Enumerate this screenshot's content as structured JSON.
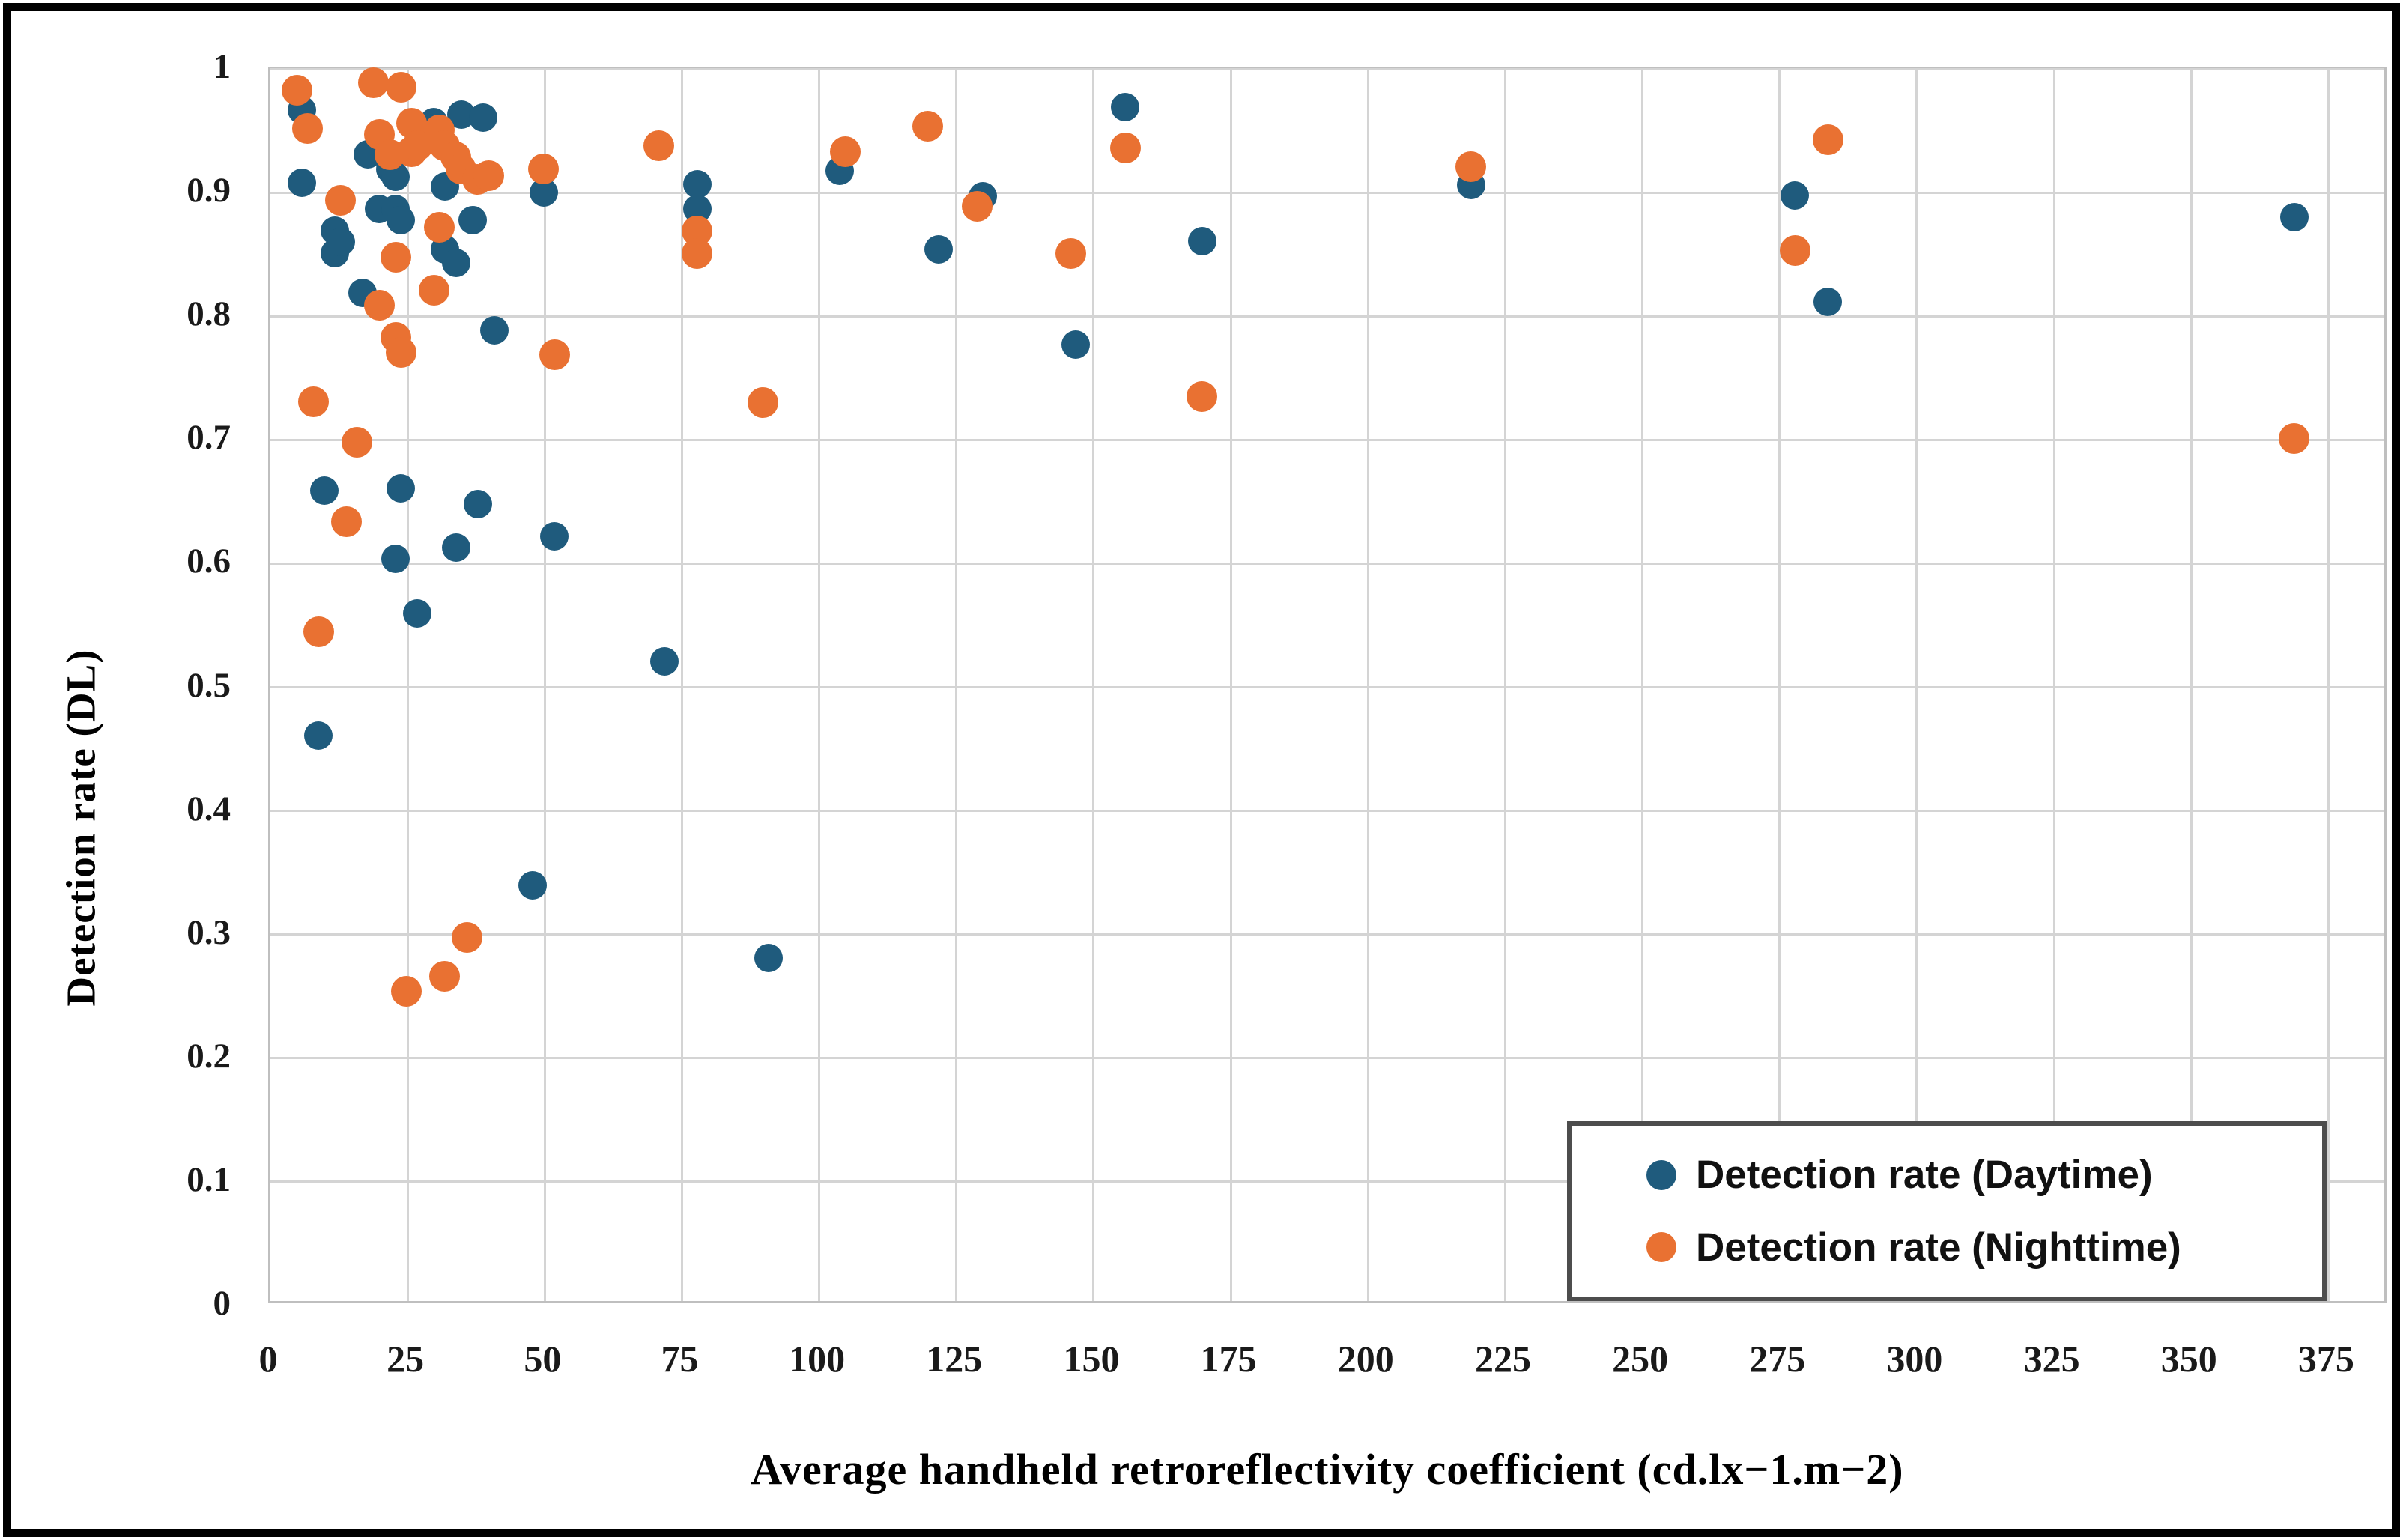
{
  "figure": {
    "background": "#ffffff",
    "border_color": "#000000"
  },
  "chart_data": {
    "type": "scatter",
    "title": "",
    "xlabel": "Average handheld retroreflectivity coefficient (cd.lx−1.m−2)",
    "ylabel": "Detection rate (DL)",
    "xlim": [
      0,
      386
    ],
    "ylim": [
      0,
      1
    ],
    "x_ticks": [
      0,
      25,
      50,
      75,
      100,
      125,
      150,
      175,
      200,
      225,
      250,
      275,
      300,
      325,
      350,
      375
    ],
    "y_ticks": [
      0,
      0.1,
      0.2,
      0.3,
      0.4,
      0.5,
      0.6,
      0.7,
      0.8,
      0.9,
      1
    ],
    "grid": true,
    "gridline_color": "#d4d4d4",
    "legend_position": "bottom-right",
    "series": [
      {
        "name": "Detection rate (Daytime)",
        "color": "#1F5B7D",
        "marker_size": 38,
        "points": [
          [
            6,
            0.966
          ],
          [
            6,
            0.907
          ],
          [
            9,
            0.46
          ],
          [
            10,
            0.658
          ],
          [
            12,
            0.868
          ],
          [
            12,
            0.85
          ],
          [
            13,
            0.859
          ],
          [
            17,
            0.818
          ],
          [
            18,
            0.93
          ],
          [
            20,
            0.886
          ],
          [
            22,
            0.918
          ],
          [
            23,
            0.912
          ],
          [
            23,
            0.886
          ],
          [
            24,
            0.877
          ],
          [
            23,
            0.603
          ],
          [
            24,
            0.66
          ],
          [
            27,
            0.559
          ],
          [
            30,
            0.956
          ],
          [
            32,
            0.904
          ],
          [
            32,
            0.853
          ],
          [
            34,
            0.842
          ],
          [
            34,
            0.612
          ],
          [
            35,
            0.962
          ],
          [
            37,
            0.877
          ],
          [
            38,
            0.647
          ],
          [
            39,
            0.96
          ],
          [
            41,
            0.788
          ],
          [
            48,
            0.339
          ],
          [
            50,
            0.899
          ],
          [
            52,
            0.621
          ],
          [
            72,
            0.52
          ],
          [
            78,
            0.906
          ],
          [
            78,
            0.886
          ],
          [
            91,
            0.28
          ],
          [
            104,
            0.917
          ],
          [
            122,
            0.853
          ],
          [
            130,
            0.896
          ],
          [
            147,
            0.776
          ],
          [
            156,
            0.968
          ],
          [
            170,
            0.86
          ],
          [
            219,
            0.905
          ],
          [
            278,
            0.897
          ],
          [
            284,
            0.811
          ],
          [
            369,
            0.879
          ]
        ]
      },
      {
        "name": "Detection rate (Nighttime)",
        "color": "#E97132",
        "marker_size": 41,
        "points": [
          [
            5,
            0.982
          ],
          [
            7,
            0.951
          ],
          [
            8,
            0.73
          ],
          [
            9,
            0.544
          ],
          [
            13,
            0.893
          ],
          [
            14,
            0.633
          ],
          [
            16,
            0.697
          ],
          [
            19,
            0.988
          ],
          [
            20,
            0.946
          ],
          [
            20,
            0.808
          ],
          [
            22,
            0.93
          ],
          [
            23,
            0.847
          ],
          [
            23,
            0.782
          ],
          [
            24,
            0.77
          ],
          [
            24,
            0.984
          ],
          [
            25,
            0.253
          ],
          [
            26,
            0.955
          ],
          [
            26,
            0.932
          ],
          [
            27,
            0.937
          ],
          [
            30,
            0.82
          ],
          [
            31,
            0.95
          ],
          [
            31,
            0.871
          ],
          [
            32,
            0.937
          ],
          [
            32,
            0.265
          ],
          [
            34,
            0.928
          ],
          [
            35,
            0.918
          ],
          [
            36,
            0.297
          ],
          [
            38,
            0.91
          ],
          [
            40,
            0.913
          ],
          [
            50,
            0.918
          ],
          [
            52,
            0.768
          ],
          [
            71,
            0.937
          ],
          [
            78,
            0.868
          ],
          [
            78,
            0.85
          ],
          [
            90,
            0.729
          ],
          [
            105,
            0.932
          ],
          [
            120,
            0.953
          ],
          [
            129,
            0.888
          ],
          [
            146,
            0.85
          ],
          [
            156,
            0.935
          ],
          [
            170,
            0.734
          ],
          [
            219,
            0.92
          ],
          [
            278,
            0.852
          ],
          [
            284,
            0.942
          ],
          [
            369,
            0.7
          ]
        ]
      }
    ]
  },
  "legend": {
    "items": [
      {
        "label": "Detection rate (Daytime)",
        "color": "#1F5B7D"
      },
      {
        "label": "Detection rate (Nighttime)",
        "color": "#E97132"
      }
    ]
  }
}
